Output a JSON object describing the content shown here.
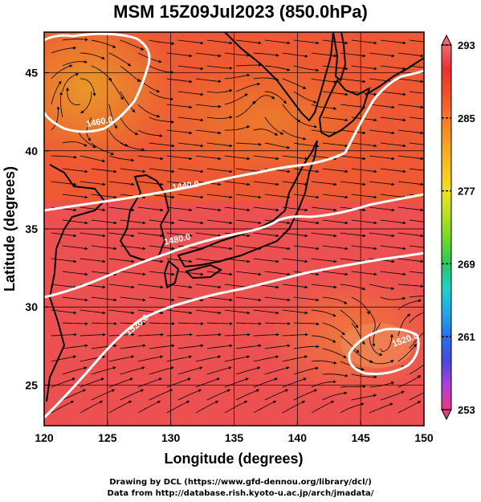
{
  "title": "MSM 15Z09Jul2023 (850.0hPa)",
  "axes": {
    "xlabel": "Longitude (degrees)",
    "ylabel": "Latitude  (degrees)",
    "x_ticks": [
      120,
      125,
      130,
      135,
      140,
      145,
      150
    ],
    "y_ticks": [
      25,
      30,
      35,
      40,
      45
    ],
    "x_range": [
      120,
      150
    ],
    "y_range": [
      22.4,
      47.6
    ]
  },
  "contours": {
    "labels": [
      "1460.0",
      "1440.0",
      "1480.0",
      "1520.0",
      "1520.0"
    ],
    "color": "#ffffff"
  },
  "colorbar": {
    "min": 253,
    "max": 293,
    "tick_labels": [
      "293",
      "285",
      "277",
      "269",
      "261",
      "253"
    ],
    "tick_values": [
      293,
      285,
      277,
      269,
      261,
      253
    ],
    "colors": [
      "#e8387e",
      "#b040d8",
      "#4848e0",
      "#2a70e8",
      "#20a8e8",
      "#20d0c8",
      "#28c860",
      "#70d828",
      "#b8e020",
      "#f0e020",
      "#f8c020",
      "#f8a020",
      "#f87828",
      "#f05028",
      "#e83030",
      "#f06878"
    ]
  },
  "field": {
    "colors": {
      "warm_red": "#f04a2a",
      "pink_red": "#ec5454",
      "orange": "#f07a28",
      "amber": "#e8982a",
      "land": "#000000",
      "grid": "#000000"
    }
  },
  "credits": {
    "line1": "Drawing by DCL (https://www.gfd-dennou.org/library/dcl/)",
    "line2": "Data from http://database.rish.kyoto-u.ac.jp/arch/jmadata/"
  }
}
